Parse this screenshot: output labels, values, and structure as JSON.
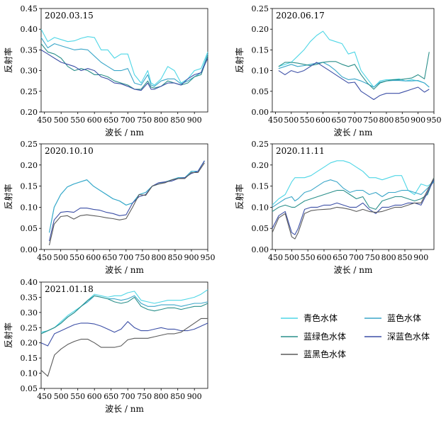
{
  "chart_data": [
    {
      "type": "line",
      "title": "2020.03.15",
      "xlabel": "波长 / nm",
      "ylabel": "反射率",
      "xlim": [
        440,
        940
      ],
      "ylim": [
        0.2,
        0.45
      ],
      "xticks": [
        "450",
        "500",
        "550",
        "600",
        "650",
        "700",
        "750",
        "800",
        "850",
        "900"
      ],
      "yticks": [
        "0.20",
        "0.25",
        "0.30",
        "0.35",
        "0.40",
        "0.45"
      ],
      "x": [
        440,
        460,
        480,
        500,
        520,
        540,
        560,
        580,
        600,
        620,
        640,
        660,
        680,
        700,
        720,
        740,
        760,
        770,
        780,
        800,
        820,
        840,
        860,
        880,
        900,
        920,
        940
      ],
      "series": [
        {
          "name": "青色水体",
          "color": "#4ed6e6",
          "values": [
            0.4,
            0.37,
            0.38,
            0.375,
            0.37,
            0.372,
            0.378,
            0.382,
            0.38,
            0.35,
            0.35,
            0.33,
            0.34,
            0.34,
            0.29,
            0.27,
            0.3,
            0.27,
            0.265,
            0.28,
            0.31,
            0.3,
            0.27,
            0.28,
            0.3,
            0.305,
            0.345
          ]
        },
        {
          "name": "蓝色水体",
          "color": "#3aa6c8",
          "values": [
            0.38,
            0.355,
            0.365,
            0.36,
            0.355,
            0.35,
            0.352,
            0.35,
            0.335,
            0.32,
            0.31,
            0.3,
            0.3,
            0.305,
            0.27,
            0.265,
            0.29,
            0.265,
            0.262,
            0.275,
            0.28,
            0.28,
            0.268,
            0.275,
            0.285,
            0.295,
            0.34
          ]
        },
        {
          "name": "蓝绿色水体",
          "color": "#2a8f8a",
          "values": [
            0.365,
            0.345,
            0.34,
            0.33,
            0.31,
            0.3,
            0.305,
            0.3,
            0.29,
            0.29,
            0.285,
            0.275,
            0.27,
            0.265,
            0.255,
            0.255,
            0.275,
            0.26,
            0.258,
            0.262,
            0.275,
            0.27,
            0.265,
            0.27,
            0.285,
            0.29,
            0.335
          ]
        },
        {
          "name": "深蓝色水体",
          "color": "#3c4fa6",
          "values": [
            0.35,
            0.34,
            0.33,
            0.32,
            0.315,
            0.31,
            0.3,
            0.305,
            0.3,
            0.285,
            0.28,
            0.27,
            0.268,
            0.262,
            0.255,
            0.252,
            0.27,
            0.255,
            0.255,
            0.262,
            0.27,
            0.27,
            0.265,
            0.28,
            0.29,
            0.295,
            0.33
          ]
        }
      ]
    },
    {
      "type": "line",
      "title": "2020.06.17",
      "xlabel": "波长 / nm",
      "ylabel": "反射率",
      "xlim": [
        440,
        950
      ],
      "ylim": [
        0.0,
        0.25
      ],
      "xticks": [
        "450",
        "500",
        "550",
        "600",
        "650",
        "700",
        "750",
        "800",
        "850",
        "900",
        "950"
      ],
      "yticks": [
        "0.00",
        "0.05",
        "0.10",
        "0.15",
        "0.20",
        "0.25"
      ],
      "x": [
        460,
        480,
        500,
        520,
        540,
        560,
        580,
        600,
        620,
        640,
        660,
        680,
        700,
        720,
        740,
        760,
        780,
        800,
        820,
        840,
        860,
        880,
        900,
        920,
        935
      ],
      "series": [
        {
          "name": "青色水体",
          "color": "#4ed6e6",
          "values": [
            0.11,
            0.115,
            0.12,
            0.135,
            0.15,
            0.17,
            0.185,
            0.195,
            0.175,
            0.17,
            0.165,
            0.14,
            0.145,
            0.1,
            0.08,
            0.06,
            0.075,
            0.078,
            0.078,
            0.08,
            0.075,
            0.078,
            0.075,
            0.07,
            0.06
          ]
        },
        {
          "name": "蓝色水体",
          "color": "#3aa6c8",
          "values": [
            0.105,
            0.11,
            0.115,
            0.11,
            0.112,
            0.115,
            0.118,
            0.12,
            0.112,
            0.1,
            0.085,
            0.078,
            0.08,
            0.075,
            0.068,
            0.06,
            0.072,
            0.075,
            0.076,
            0.076,
            0.075,
            0.075,
            0.076,
            0.07,
            0.06
          ]
        },
        {
          "name": "蓝绿色水体",
          "color": "#2a8f8a",
          "values": [
            0.11,
            0.12,
            0.12,
            0.118,
            0.115,
            0.112,
            0.115,
            0.12,
            0.122,
            0.122,
            0.115,
            0.11,
            0.115,
            0.09,
            0.07,
            0.055,
            0.07,
            0.075,
            0.078,
            0.078,
            0.08,
            0.082,
            0.09,
            0.08,
            0.145
          ]
        },
        {
          "name": "深蓝色水体",
          "color": "#3c4fa6",
          "values": [
            0.1,
            0.09,
            0.1,
            0.095,
            0.1,
            0.11,
            0.12,
            0.11,
            0.1,
            0.09,
            0.08,
            0.07,
            0.072,
            0.05,
            0.04,
            0.03,
            0.04,
            0.045,
            0.045,
            0.045,
            0.05,
            0.055,
            0.06,
            0.048,
            0.055
          ]
        }
      ]
    },
    {
      "type": "line",
      "title": "2020.10.10",
      "xlabel": "波长 / nm",
      "ylabel": "反射率",
      "xlim": [
        440,
        950
      ],
      "ylim": [
        0.0,
        0.25
      ],
      "xticks": [
        "450",
        "500",
        "550",
        "600",
        "650",
        "700",
        "750",
        "800",
        "850",
        "900",
        "950"
      ],
      "yticks": [
        "0.00",
        "0.05",
        "0.10",
        "0.15",
        "0.20",
        "0.25"
      ],
      "x": [
        465,
        480,
        500,
        520,
        540,
        560,
        580,
        600,
        620,
        640,
        660,
        680,
        700,
        720,
        740,
        760,
        780,
        800,
        820,
        840,
        860,
        880,
        900,
        920,
        940
      ],
      "series": [
        {
          "name": "青色水体",
          "color": "#4ed6e6",
          "values": [
            0.04,
            0.1,
            0.13,
            0.148,
            0.155,
            0.16,
            0.165,
            0.15,
            0.14,
            0.13,
            0.12,
            0.115,
            0.105,
            0.11,
            0.13,
            0.135,
            0.15,
            0.155,
            0.16,
            0.165,
            0.17,
            0.17,
            0.185,
            0.185,
            0.21
          ]
        },
        {
          "name": "蓝色水体",
          "color": "#3aa6c8",
          "values": [
            0.04,
            0.1,
            0.13,
            0.148,
            0.155,
            0.16,
            0.165,
            0.15,
            0.14,
            0.13,
            0.12,
            0.115,
            0.105,
            0.11,
            0.13,
            0.135,
            0.15,
            0.155,
            0.16,
            0.165,
            0.17,
            0.17,
            0.185,
            0.185,
            0.21
          ]
        },
        {
          "name": "深蓝色水体",
          "color": "#3c4fa6",
          "values": [
            0.02,
            0.07,
            0.088,
            0.09,
            0.088,
            0.098,
            0.098,
            0.095,
            0.093,
            0.088,
            0.085,
            0.08,
            0.082,
            0.11,
            0.125,
            0.13,
            0.15,
            0.158,
            0.16,
            0.162,
            0.168,
            0.17,
            0.18,
            0.185,
            0.21
          ]
        },
        {
          "name": "蓝黑色水体",
          "color": "#5a5a5a",
          "values": [
            0.01,
            0.06,
            0.078,
            0.08,
            0.072,
            0.08,
            0.082,
            0.08,
            0.078,
            0.075,
            0.073,
            0.07,
            0.073,
            0.1,
            0.13,
            0.128,
            0.15,
            0.155,
            0.158,
            0.165,
            0.168,
            0.168,
            0.182,
            0.182,
            0.205
          ]
        }
      ]
    },
    {
      "type": "line",
      "title": "2020.11.11",
      "xlabel": "波长 / nm",
      "ylabel": "反射率",
      "xlim": [
        440,
        940
      ],
      "ylim": [
        0.0,
        0.25
      ],
      "xticks": [
        "450",
        "500",
        "550",
        "600",
        "650",
        "700",
        "750",
        "800",
        "850",
        "900"
      ],
      "yticks": [
        "0.00",
        "0.05",
        "0.10",
        "0.15",
        "0.20",
        "0.25"
      ],
      "x": [
        440,
        460,
        480,
        500,
        510,
        520,
        540,
        560,
        580,
        600,
        620,
        640,
        660,
        680,
        700,
        720,
        740,
        760,
        780,
        800,
        820,
        840,
        860,
        880,
        900,
        920,
        940
      ],
      "series": [
        {
          "name": "青色水体",
          "color": "#4ed6e6",
          "values": [
            0.105,
            0.12,
            0.13,
            0.16,
            0.17,
            0.17,
            0.17,
            0.175,
            0.185,
            0.195,
            0.205,
            0.21,
            0.21,
            0.205,
            0.195,
            0.185,
            0.17,
            0.17,
            0.165,
            0.17,
            0.175,
            0.175,
            0.14,
            0.13,
            0.155,
            0.15,
            0.16
          ]
        },
        {
          "name": "蓝色水体",
          "color": "#3aa6c8",
          "values": [
            0.1,
            0.11,
            0.12,
            0.125,
            0.115,
            0.12,
            0.135,
            0.14,
            0.15,
            0.16,
            0.165,
            0.16,
            0.145,
            0.135,
            0.14,
            0.14,
            0.13,
            0.135,
            0.125,
            0.135,
            0.135,
            0.14,
            0.14,
            0.135,
            0.13,
            0.145,
            0.16
          ]
        },
        {
          "name": "蓝绿色水体",
          "color": "#2a8f8a",
          "values": [
            0.09,
            0.1,
            0.105,
            0.1,
            0.1,
            0.105,
            0.115,
            0.12,
            0.125,
            0.13,
            0.135,
            0.14,
            0.14,
            0.13,
            0.12,
            0.125,
            0.1,
            0.095,
            0.115,
            0.12,
            0.125,
            0.125,
            0.12,
            0.115,
            0.12,
            0.13,
            0.17
          ]
        },
        {
          "name": "深蓝色水体",
          "color": "#3c4fa6",
          "values": [
            0.05,
            0.08,
            0.09,
            0.04,
            0.035,
            0.05,
            0.095,
            0.1,
            0.1,
            0.105,
            0.105,
            0.11,
            0.105,
            0.1,
            0.1,
            0.11,
            0.095,
            0.085,
            0.1,
            0.1,
            0.105,
            0.105,
            0.11,
            0.11,
            0.105,
            0.135,
            0.165
          ]
        },
        {
          "name": "蓝黑色水体",
          "color": "#5a5a5a",
          "values": [
            0.04,
            0.075,
            0.085,
            0.03,
            0.025,
            0.04,
            0.085,
            0.092,
            0.094,
            0.095,
            0.096,
            0.1,
            0.098,
            0.095,
            0.09,
            0.095,
            0.09,
            0.088,
            0.09,
            0.095,
            0.1,
            0.1,
            0.105,
            0.11,
            0.11,
            0.14,
            0.17
          ]
        }
      ]
    },
    {
      "type": "line",
      "title": "2021.01.18",
      "xlabel": "波长 / nm",
      "ylabel": "反射率",
      "xlim": [
        440,
        940
      ],
      "ylim": [
        0.05,
        0.4
      ],
      "xticks": [
        "450",
        "500",
        "550",
        "600",
        "650",
        "700",
        "750",
        "800",
        "850",
        "900"
      ],
      "yticks": [
        "0.05",
        "0.10",
        "0.15",
        "0.20",
        "0.25",
        "0.30",
        "0.35",
        "0.40"
      ],
      "x": [
        440,
        460,
        480,
        500,
        520,
        540,
        560,
        580,
        600,
        620,
        640,
        660,
        680,
        700,
        720,
        740,
        760,
        780,
        800,
        820,
        840,
        860,
        880,
        900,
        920,
        940
      ],
      "series": [
        {
          "name": "青色水体",
          "color": "#4ed6e6",
          "values": [
            0.235,
            0.24,
            0.25,
            0.27,
            0.29,
            0.305,
            0.32,
            0.34,
            0.36,
            0.355,
            0.35,
            0.355,
            0.355,
            0.365,
            0.37,
            0.34,
            0.335,
            0.33,
            0.335,
            0.34,
            0.34,
            0.34,
            0.345,
            0.35,
            0.36,
            0.375
          ]
        },
        {
          "name": "蓝色水体",
          "color": "#3aa6c8",
          "values": [
            0.23,
            0.24,
            0.25,
            0.265,
            0.285,
            0.3,
            0.32,
            0.335,
            0.355,
            0.35,
            0.345,
            0.345,
            0.34,
            0.345,
            0.355,
            0.33,
            0.32,
            0.32,
            0.325,
            0.325,
            0.325,
            0.32,
            0.325,
            0.33,
            0.33,
            0.335
          ]
        },
        {
          "name": "蓝绿色水体",
          "color": "#2a8f8a",
          "values": [
            0.23,
            0.24,
            0.25,
            0.265,
            0.285,
            0.3,
            0.32,
            0.34,
            0.355,
            0.35,
            0.345,
            0.335,
            0.33,
            0.335,
            0.35,
            0.32,
            0.31,
            0.305,
            0.31,
            0.315,
            0.315,
            0.31,
            0.315,
            0.32,
            0.32,
            0.33
          ]
        },
        {
          "name": "深蓝色水体",
          "color": "#3c4fa6",
          "values": [
            0.2,
            0.19,
            0.23,
            0.24,
            0.25,
            0.26,
            0.265,
            0.265,
            0.262,
            0.255,
            0.245,
            0.235,
            0.245,
            0.27,
            0.25,
            0.24,
            0.24,
            0.245,
            0.25,
            0.245,
            0.245,
            0.24,
            0.24,
            0.245,
            0.255,
            0.265
          ]
        },
        {
          "name": "蓝黑色水体",
          "color": "#5a5a5a",
          "values": [
            0.11,
            0.09,
            0.16,
            0.18,
            0.195,
            0.205,
            0.212,
            0.212,
            0.2,
            0.185,
            0.185,
            0.185,
            0.19,
            0.21,
            0.215,
            0.215,
            0.215,
            0.22,
            0.225,
            0.23,
            0.23,
            0.235,
            0.25,
            0.265,
            0.28,
            0.28
          ]
        }
      ]
    }
  ],
  "legend": {
    "items": [
      {
        "label": "青色水体",
        "color": "#4ed6e6"
      },
      {
        "label": "蓝色水体",
        "color": "#3aa6c8"
      },
      {
        "label": "蓝绿色水体",
        "color": "#2a8f8a"
      },
      {
        "label": "深蓝色水体",
        "color": "#3c4fa6"
      },
      {
        "label": "蓝黑色水体",
        "color": "#5a5a5a"
      }
    ]
  }
}
